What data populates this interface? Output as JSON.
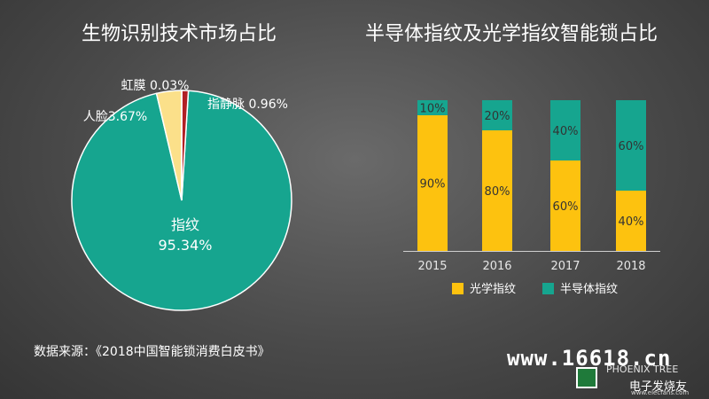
{
  "colors": {
    "teal": "#16a58f",
    "yellow": "#fdc20f",
    "cream": "#fbe08a",
    "red": "#b12025",
    "text": "#ffffff",
    "axis": "#cfcfcf"
  },
  "pie": {
    "title": "生物识别技术市场占比",
    "labels": {
      "iris": "虹膜 0.03%",
      "finger_vein": "指静脉 0.96%",
      "face": "人脸3.67%",
      "fingerprint_name": "指纹",
      "fingerprint_value": "95.34%"
    }
  },
  "bars": {
    "title": "半导体指纹及光学指纹智能锁占比",
    "legend": {
      "optical": "光学指纹",
      "semiconductor": "半导体指纹"
    }
  },
  "source": "数据来源：《2018中国智能锁消费白皮书》",
  "watermark": {
    "url": "www.16618.cn",
    "logo_text": "PHOENIX TREE",
    "logo_cn": "电子发烧友",
    "logo_en": "www.elecfans.com"
  },
  "chart_data": [
    {
      "type": "pie",
      "title": "生物识别技术市场占比",
      "slices": [
        {
          "label": "指纹",
          "value": 95.34
        },
        {
          "label": "人脸",
          "value": 3.67
        },
        {
          "label": "虹膜",
          "value": 0.03
        },
        {
          "label": "指静脉",
          "value": 0.96
        }
      ]
    },
    {
      "type": "bar",
      "stacked": true,
      "title": "半导体指纹及光学指纹智能锁占比",
      "categories": [
        "2015",
        "2016",
        "2017",
        "2018"
      ],
      "series": [
        {
          "name": "光学指纹",
          "values": [
            90,
            80,
            60,
            40
          ]
        },
        {
          "name": "半导体指纹",
          "values": [
            10,
            20,
            40,
            60
          ]
        }
      ],
      "ylim": [
        0,
        100
      ],
      "value_labels": [
        "90%",
        "10%",
        "80%",
        "20%",
        "60%",
        "40%",
        "40%",
        "60%"
      ],
      "legend": "bottom"
    }
  ]
}
